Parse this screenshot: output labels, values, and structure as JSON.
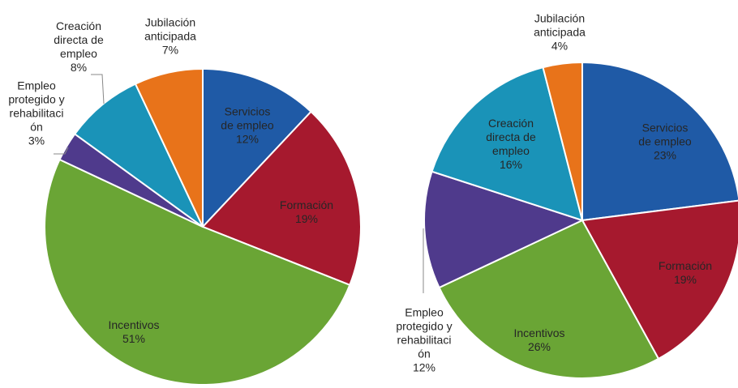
{
  "chart_data": [
    {
      "type": "pie",
      "categories": [
        "Servicios\nde empleo",
        "Formación",
        "Incentivos",
        "Empleo\nprotegido y\nrehabilitaci\nón",
        "Creación\ndirecta de\nempleo",
        "Jubilación\nanticipada"
      ],
      "values": [
        12,
        19,
        51,
        3,
        8,
        7
      ],
      "value_labels": [
        "12%",
        "19%",
        "51%",
        "3%",
        "8%",
        "7%"
      ],
      "colors": [
        "#1f5aa6",
        "#a6192e",
        "#6aa535",
        "#4f3a8c",
        "#1a93b8",
        "#e8731a"
      ]
    },
    {
      "type": "pie",
      "categories": [
        "Servicios\nde empleo",
        "Formación",
        "Incentivos",
        "Empleo\nprotegido y\nrehabilitaci\nón",
        "Creación\ndirecta de\nempleo",
        "Jubilación\nanticipada"
      ],
      "values": [
        23,
        19,
        26,
        12,
        16,
        4
      ],
      "value_labels": [
        "23%",
        "19%",
        "26%",
        "12%",
        "16%",
        "4%"
      ],
      "colors": [
        "#1f5aa6",
        "#a6192e",
        "#6aa535",
        "#4f3a8c",
        "#1a93b8",
        "#e8731a"
      ]
    }
  ]
}
